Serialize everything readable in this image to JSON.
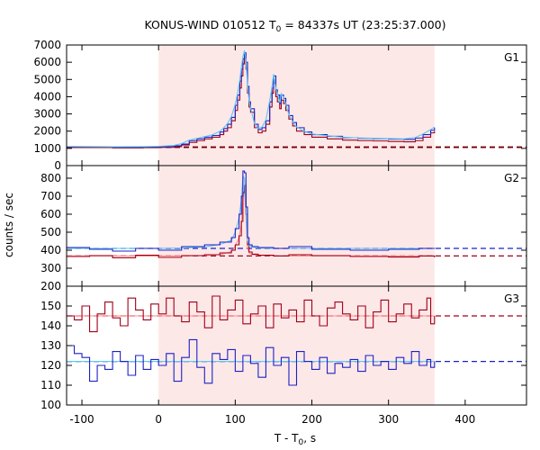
{
  "title": {
    "prefix": "KONUS-WIND 010512 T",
    "sub": "0",
    "suffix": " = 84337s UT (23:25:37.000)"
  },
  "xlabel": {
    "prefix": "T - T",
    "sub": "0",
    "suffix": ", s"
  },
  "ylabel": "counts / sec",
  "colors": {
    "highlight": "#fde8e8",
    "red": "#a00018",
    "red_fit": "#ff8c8c",
    "blue": "#1c22c4",
    "blue_fit": "#5cc8f0",
    "dark_dashed": "#6b0000"
  },
  "chart_data": [
    {
      "type": "line",
      "panel": "G1",
      "xlim": [
        -120,
        480
      ],
      "ylim": [
        0,
        7000
      ],
      "yticks": [
        0,
        1000,
        2000,
        3000,
        4000,
        5000,
        6000,
        7000
      ],
      "shaded_interval": [
        0,
        360
      ],
      "series": [
        {
          "color": "red",
          "x": [
            -120,
            -60,
            -20,
            0,
            20,
            30,
            40,
            50,
            60,
            70,
            80,
            85,
            90,
            95,
            100,
            103,
            106,
            108,
            110,
            112,
            114,
            116,
            118,
            120,
            125,
            130,
            135,
            140,
            145,
            148,
            150,
            153,
            155,
            158,
            160,
            163,
            166,
            170,
            175,
            180,
            190,
            200,
            220,
            240,
            260,
            280,
            300,
            320,
            335,
            345,
            355,
            360
          ],
          "y": [
            1050,
            1030,
            1040,
            1060,
            1100,
            1200,
            1350,
            1450,
            1550,
            1650,
            1800,
            2000,
            2200,
            2600,
            3200,
            3800,
            4500,
            5200,
            5900,
            6300,
            5600,
            4200,
            3400,
            3100,
            2200,
            1900,
            2000,
            2400,
            3400,
            4200,
            4800,
            4000,
            3700,
            3300,
            3800,
            3600,
            3200,
            2700,
            2300,
            2000,
            1800,
            1650,
            1550,
            1480,
            1450,
            1430,
            1400,
            1380,
            1450,
            1650,
            1900,
            2000
          ]
        },
        {
          "color": "blue",
          "x": [
            -120,
            -60,
            -20,
            0,
            20,
            30,
            40,
            50,
            60,
            70,
            80,
            85,
            90,
            95,
            100,
            103,
            106,
            108,
            110,
            112,
            114,
            116,
            118,
            120,
            125,
            130,
            135,
            140,
            145,
            148,
            150,
            153,
            155,
            158,
            160,
            163,
            166,
            170,
            175,
            180,
            190,
            200,
            220,
            240,
            260,
            280,
            300,
            320,
            335,
            345,
            355,
            360
          ],
          "y": [
            1090,
            1070,
            1080,
            1100,
            1150,
            1250,
            1450,
            1550,
            1650,
            1750,
            1950,
            2150,
            2400,
            2800,
            3500,
            4100,
            4900,
            5600,
            6200,
            6550,
            6000,
            4600,
            3700,
            3300,
            2400,
            2100,
            2200,
            2600,
            3700,
            4500,
            5200,
            4400,
            4100,
            3600,
            4100,
            3900,
            3500,
            2900,
            2500,
            2200,
            1950,
            1800,
            1700,
            1620,
            1580,
            1560,
            1540,
            1520,
            1600,
            1800,
            2050,
            2200
          ]
        }
      ],
      "background_levels": [
        {
          "color": "red",
          "y": 1050
        },
        {
          "color": "dark_dashed",
          "y": 1080
        }
      ],
      "label": "G1"
    },
    {
      "type": "line",
      "panel": "G2",
      "xlim": [
        -120,
        480
      ],
      "ylim": [
        200,
        870
      ],
      "yticks": [
        200,
        300,
        400,
        500,
        600,
        700,
        800
      ],
      "shaded_interval": [
        0,
        360
      ],
      "series": [
        {
          "color": "red",
          "x": [
            -120,
            -90,
            -60,
            -30,
            0,
            30,
            60,
            80,
            95,
            100,
            105,
            108,
            110,
            112,
            114,
            116,
            118,
            122,
            130,
            150,
            170,
            200,
            250,
            300,
            340,
            360
          ],
          "y": [
            365,
            370,
            358,
            372,
            360,
            370,
            375,
            385,
            400,
            430,
            480,
            560,
            720,
            760,
            600,
            430,
            390,
            378,
            372,
            368,
            375,
            370,
            365,
            362,
            368,
            360
          ],
          "fit_y": [
            368,
            368,
            368,
            368,
            368,
            368,
            370,
            376,
            392,
            420,
            470,
            545,
            690,
            730,
            580,
            420,
            385,
            376,
            372,
            370,
            368,
            368,
            368,
            368,
            368,
            368
          ]
        },
        {
          "color": "blue",
          "x": [
            -120,
            -90,
            -60,
            -30,
            0,
            30,
            60,
            80,
            95,
            100,
            105,
            108,
            110,
            112,
            114,
            116,
            118,
            122,
            130,
            150,
            170,
            200,
            250,
            300,
            340,
            360
          ],
          "y": [
            415,
            405,
            395,
            410,
            400,
            420,
            430,
            445,
            470,
            520,
            600,
            700,
            840,
            830,
            640,
            470,
            430,
            420,
            415,
            410,
            420,
            405,
            400,
            405,
            410,
            412
          ],
          "fit_y": [
            410,
            410,
            410,
            410,
            410,
            412,
            418,
            432,
            455,
            500,
            580,
            680,
            810,
            800,
            620,
            455,
            425,
            418,
            412,
            410,
            410,
            410,
            410,
            410,
            410,
            410
          ]
        }
      ],
      "background_levels": [
        {
          "color": "blue",
          "y": 410
        },
        {
          "color": "red",
          "y": 368
        }
      ],
      "label": "G2"
    },
    {
      "type": "line",
      "panel": "G3",
      "xlim": [
        -120,
        480
      ],
      "ylim": [
        100,
        160
      ],
      "yticks": [
        100,
        110,
        120,
        130,
        140,
        150
      ],
      "shaded_interval": [
        0,
        360
      ],
      "series": [
        {
          "color": "red",
          "x": [
            -120,
            -110,
            -100,
            -90,
            -80,
            -70,
            -60,
            -50,
            -40,
            -30,
            -20,
            -10,
            0,
            10,
            20,
            30,
            40,
            50,
            60,
            70,
            80,
            90,
            100,
            110,
            120,
            130,
            140,
            150,
            160,
            170,
            180,
            190,
            200,
            210,
            220,
            230,
            240,
            250,
            260,
            270,
            280,
            290,
            300,
            310,
            320,
            330,
            340,
            350,
            355,
            360
          ],
          "y": [
            145,
            143,
            150,
            137,
            146,
            152,
            144,
            140,
            154,
            148,
            143,
            151,
            146,
            154,
            145,
            142,
            152,
            147,
            139,
            155,
            143,
            148,
            153,
            141,
            146,
            150,
            139,
            151,
            144,
            148,
            142,
            153,
            145,
            140,
            149,
            152,
            146,
            143,
            150,
            139,
            147,
            153,
            142,
            146,
            151,
            144,
            148,
            154,
            141,
            145
          ],
          "fit_y": 145
        },
        {
          "color": "blue",
          "x": [
            -120,
            -110,
            -100,
            -90,
            -80,
            -70,
            -60,
            -50,
            -40,
            -30,
            -20,
            -10,
            0,
            10,
            20,
            30,
            40,
            50,
            60,
            70,
            80,
            90,
            100,
            110,
            120,
            130,
            140,
            150,
            160,
            170,
            180,
            190,
            200,
            210,
            220,
            230,
            240,
            250,
            260,
            270,
            280,
            290,
            300,
            310,
            320,
            330,
            340,
            350,
            355,
            360
          ],
          "y": [
            130,
            126,
            124,
            112,
            120,
            118,
            127,
            122,
            115,
            125,
            118,
            123,
            120,
            126,
            112,
            124,
            133,
            119,
            111,
            126,
            123,
            128,
            117,
            125,
            121,
            114,
            129,
            120,
            124,
            110,
            127,
            122,
            118,
            124,
            116,
            121,
            119,
            123,
            117,
            125,
            120,
            122,
            118,
            124,
            121,
            127,
            120,
            123,
            119,
            122
          ],
          "fit_y": 122
        }
      ],
      "background_levels": [
        {
          "color": "red",
          "y": 145
        },
        {
          "color": "blue",
          "y": 122
        }
      ],
      "label": "G3"
    }
  ],
  "xticks": [
    -100,
    0,
    100,
    200,
    300,
    400
  ]
}
